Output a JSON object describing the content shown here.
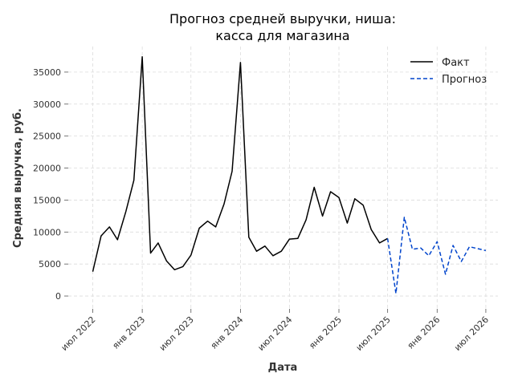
{
  "chart_data": {
    "type": "line",
    "title_lines": [
      "Прогноз средней выручки, ниша:",
      "касса для магазина"
    ],
    "xlabel": "Дата",
    "ylabel": "Средняя выручка, руб.",
    "ylim": [
      -2000,
      39000
    ],
    "xlim": [
      "2022-04-01",
      "2026-08-15"
    ],
    "grid": true,
    "legend_position": "top-right",
    "y_ticks": [
      0,
      5000,
      10000,
      15000,
      20000,
      25000,
      30000,
      35000
    ],
    "x_ticks": [
      {
        "date": "2022-07-01",
        "label": "июл 2022"
      },
      {
        "date": "2023-01-01",
        "label": "янв 2023"
      },
      {
        "date": "2023-07-01",
        "label": "июл 2023"
      },
      {
        "date": "2024-01-01",
        "label": "янв 2024"
      },
      {
        "date": "2024-07-01",
        "label": "июл 2024"
      },
      {
        "date": "2025-01-01",
        "label": "янв 2025"
      },
      {
        "date": "2025-07-01",
        "label": "июл 2025"
      },
      {
        "date": "2026-01-01",
        "label": "янв 2026"
      },
      {
        "date": "2026-07-01",
        "label": "июл 2026"
      }
    ],
    "series": [
      {
        "name": "Факт",
        "color": "#000000",
        "style": "solid",
        "x": [
          "2022-07-01",
          "2022-08-01",
          "2022-09-01",
          "2022-10-01",
          "2022-11-01",
          "2022-12-01",
          "2023-01-01",
          "2023-02-01",
          "2023-03-01",
          "2023-04-01",
          "2023-05-01",
          "2023-06-01",
          "2023-07-01",
          "2023-08-01",
          "2023-09-01",
          "2023-10-01",
          "2023-11-01",
          "2023-12-01",
          "2024-01-01",
          "2024-02-01",
          "2024-03-01",
          "2024-04-01",
          "2024-05-01",
          "2024-06-01",
          "2024-07-01",
          "2024-08-01",
          "2024-09-01",
          "2024-10-01",
          "2024-11-01",
          "2024-12-01",
          "2025-01-01",
          "2025-02-01",
          "2025-03-01",
          "2025-04-01",
          "2025-05-01",
          "2025-06-01",
          "2025-07-01"
        ],
        "values": [
          3800,
          9400,
          10800,
          8800,
          13200,
          18100,
          37400,
          6700,
          8300,
          5500,
          4100,
          4600,
          6400,
          10600,
          11700,
          10800,
          14400,
          19500,
          36500,
          9200,
          7000,
          7800,
          6300,
          7000,
          8900,
          9000,
          11900,
          17000,
          12500,
          16300,
          15400,
          11400,
          15200,
          14200,
          10400,
          8300,
          9000
        ]
      },
      {
        "name": "Прогноз",
        "color": "#0044cc",
        "style": "dashed",
        "x": [
          "2025-07-01",
          "2025-08-01",
          "2025-09-01",
          "2025-10-01",
          "2025-11-01",
          "2025-12-01",
          "2026-01-01",
          "2026-02-01",
          "2026-03-01",
          "2026-04-01",
          "2026-05-01",
          "2026-06-01",
          "2026-07-01"
        ],
        "values": [
          9000,
          400,
          12300,
          7300,
          7500,
          6300,
          8500,
          3400,
          7900,
          5400,
          7700,
          7400,
          7100
        ]
      }
    ]
  }
}
